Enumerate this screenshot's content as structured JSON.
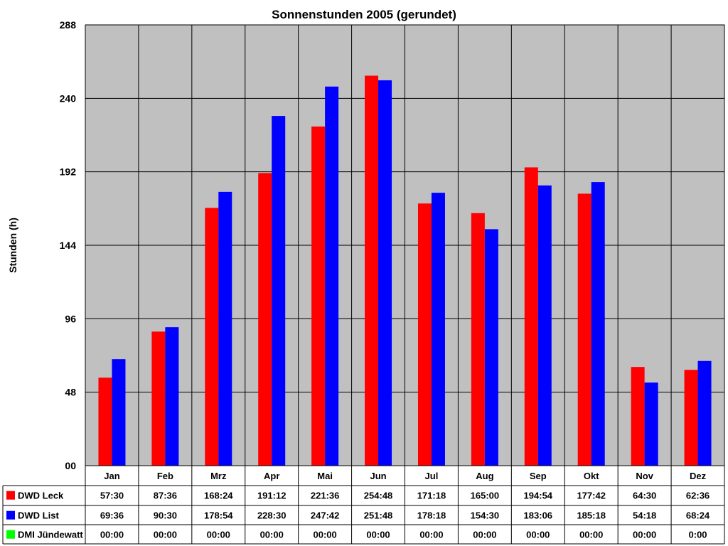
{
  "chart_data": {
    "type": "bar",
    "title": "Sonnenstunden 2005 (gerundet)",
    "ylabel": "Stunden (h)",
    "xlabel": "",
    "ylim": [
      0,
      288
    ],
    "yticks": [
      0,
      48,
      96,
      144,
      192,
      240,
      288
    ],
    "ytick_labels": [
      "00",
      "48",
      "96",
      "144",
      "192",
      "240",
      "288"
    ],
    "grid": true,
    "plot_background": "#c0c0c0",
    "categories": [
      "Jan",
      "Feb",
      "Mrz",
      "Apr",
      "Mai",
      "Jun",
      "Jul",
      "Aug",
      "Sep",
      "Okt",
      "Nov",
      "Dez"
    ],
    "legend_placement": "data-table-left",
    "series": [
      {
        "name": "DWD Leck",
        "color": "#ff0000",
        "values": [
          57.5,
          87.6,
          168.4,
          191.2,
          221.6,
          254.8,
          171.3,
          165.0,
          194.9,
          177.7,
          64.5,
          62.6
        ],
        "labels": [
          "57:30",
          "87:36",
          "168:24",
          "191:12",
          "221:36",
          "254:48",
          "171:18",
          "165:00",
          "194:54",
          "177:42",
          "64:30",
          "62:36"
        ]
      },
      {
        "name": "DWD List",
        "color": "#0000ff",
        "values": [
          69.6,
          90.5,
          178.9,
          228.5,
          247.7,
          251.8,
          178.3,
          154.5,
          183.1,
          185.3,
          54.3,
          68.4
        ],
        "labels": [
          "69:36",
          "90:30",
          "178:54",
          "228:30",
          "247:42",
          "251:48",
          "178:18",
          "154:30",
          "183:06",
          "185:18",
          "54:18",
          "68:24"
        ]
      },
      {
        "name": "DMI Jündewatt",
        "color": "#00ff00",
        "values": [
          0,
          0,
          0,
          0,
          0,
          0,
          0,
          0,
          0,
          0,
          0,
          0
        ],
        "labels": [
          "00:00",
          "00:00",
          "00:00",
          "00:00",
          "00:00",
          "00:00",
          "00:00",
          "00:00",
          "00:00",
          "00:00",
          "00:00",
          "0:00"
        ]
      }
    ]
  }
}
